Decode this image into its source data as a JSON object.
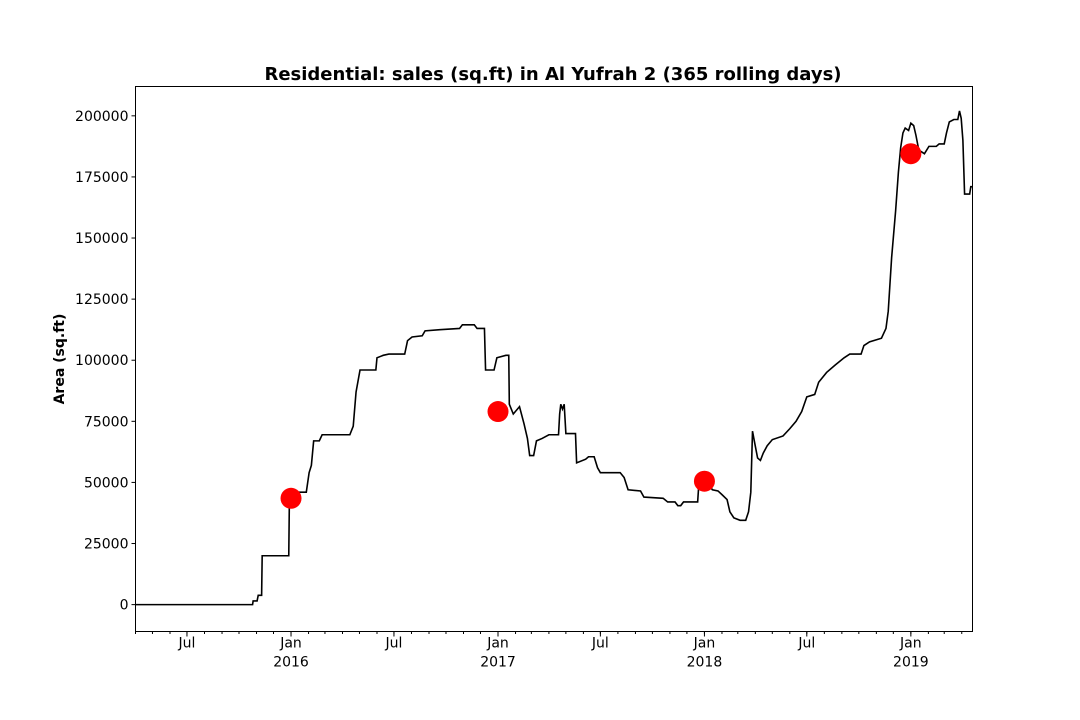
{
  "chart_data": {
    "type": "line",
    "title": "Residential: sales (sq.ft) in Al Yufrah 2 (365 rolling days)",
    "xlabel": "",
    "ylabel": "Area (sq.ft)",
    "xlim": [
      "2015-04-01",
      "2019-04-20"
    ],
    "ylim": [
      -11000,
      212000
    ],
    "grid": false,
    "y_ticks": [
      {
        "value": 0,
        "label": "0"
      },
      {
        "value": 25000,
        "label": "25000"
      },
      {
        "value": 50000,
        "label": "50000"
      },
      {
        "value": 75000,
        "label": "75000"
      },
      {
        "value": 100000,
        "label": "100000"
      },
      {
        "value": 125000,
        "label": "125000"
      },
      {
        "value": 150000,
        "label": "150000"
      },
      {
        "value": 175000,
        "label": "175000"
      },
      {
        "value": 200000,
        "label": "200000"
      }
    ],
    "x_major_ticks": [
      {
        "date": "2015-07-01",
        "label": "Jul",
        "sublabel": ""
      },
      {
        "date": "2016-01-01",
        "label": "Jan",
        "sublabel": "2016"
      },
      {
        "date": "2016-07-01",
        "label": "Jul",
        "sublabel": ""
      },
      {
        "date": "2017-01-01",
        "label": "Jan",
        "sublabel": "2017"
      },
      {
        "date": "2017-07-01",
        "label": "Jul",
        "sublabel": ""
      },
      {
        "date": "2018-01-01",
        "label": "Jan",
        "sublabel": "2018"
      },
      {
        "date": "2018-07-01",
        "label": "Jul",
        "sublabel": ""
      },
      {
        "date": "2019-01-01",
        "label": "Jan",
        "sublabel": "2019"
      }
    ],
    "series": [
      {
        "color": "#000000",
        "points": [
          [
            "2015-04-01",
            0
          ],
          [
            "2015-10-25",
            0
          ],
          [
            "2015-10-26",
            1500
          ],
          [
            "2015-11-02",
            1500
          ],
          [
            "2015-11-04",
            3800
          ],
          [
            "2015-11-10",
            3800
          ],
          [
            "2015-11-11",
            20000
          ],
          [
            "2015-12-28",
            20000
          ],
          [
            "2015-12-29",
            41000
          ],
          [
            "2016-01-10",
            43000
          ],
          [
            "2016-01-14",
            46000
          ],
          [
            "2016-01-28",
            46000
          ],
          [
            "2016-02-02",
            54000
          ],
          [
            "2016-02-06",
            57000
          ],
          [
            "2016-02-10",
            67000
          ],
          [
            "2016-02-20",
            67000
          ],
          [
            "2016-02-25",
            69500
          ],
          [
            "2016-04-14",
            69500
          ],
          [
            "2016-04-20",
            73000
          ],
          [
            "2016-04-25",
            87000
          ],
          [
            "2016-05-02",
            96000
          ],
          [
            "2016-05-30",
            96000
          ],
          [
            "2016-06-01",
            101000
          ],
          [
            "2016-06-12",
            102000
          ],
          [
            "2016-06-22",
            102500
          ],
          [
            "2016-07-20",
            102500
          ],
          [
            "2016-07-25",
            108000
          ],
          [
            "2016-08-02",
            109500
          ],
          [
            "2016-08-20",
            110000
          ],
          [
            "2016-08-25",
            112000
          ],
          [
            "2016-09-20",
            112500
          ],
          [
            "2016-10-25",
            113000
          ],
          [
            "2016-10-30",
            114500
          ],
          [
            "2016-11-20",
            114500
          ],
          [
            "2016-11-25",
            113000
          ],
          [
            "2016-12-08",
            113000
          ],
          [
            "2016-12-10",
            96000
          ],
          [
            "2016-12-25",
            96000
          ],
          [
            "2016-12-30",
            101000
          ],
          [
            "2017-01-15",
            102000
          ],
          [
            "2017-01-20",
            102000
          ],
          [
            "2017-01-21",
            82000
          ],
          [
            "2017-01-28",
            78000
          ],
          [
            "2017-02-08",
            81000
          ],
          [
            "2017-02-16",
            74000
          ],
          [
            "2017-02-22",
            68000
          ],
          [
            "2017-02-26",
            61000
          ],
          [
            "2017-03-05",
            61000
          ],
          [
            "2017-03-10",
            67000
          ],
          [
            "2017-03-20",
            68000
          ],
          [
            "2017-04-01",
            69500
          ],
          [
            "2017-04-18",
            69500
          ],
          [
            "2017-04-20",
            78000
          ],
          [
            "2017-04-22",
            82000
          ],
          [
            "2017-04-25",
            80000
          ],
          [
            "2017-04-28",
            82000
          ],
          [
            "2017-05-01",
            70000
          ],
          [
            "2017-05-18",
            70000
          ],
          [
            "2017-05-20",
            58000
          ],
          [
            "2017-06-05",
            59500
          ],
          [
            "2017-06-10",
            60500
          ],
          [
            "2017-06-20",
            60500
          ],
          [
            "2017-06-26",
            56000
          ],
          [
            "2017-07-01",
            54000
          ],
          [
            "2017-08-05",
            54000
          ],
          [
            "2017-08-12",
            52000
          ],
          [
            "2017-08-19",
            47000
          ],
          [
            "2017-09-10",
            46500
          ],
          [
            "2017-09-16",
            44000
          ],
          [
            "2017-10-20",
            43500
          ],
          [
            "2017-10-28",
            42000
          ],
          [
            "2017-11-10",
            42000
          ],
          [
            "2017-11-15",
            40500
          ],
          [
            "2017-11-20",
            40500
          ],
          [
            "2017-11-25",
            42000
          ],
          [
            "2017-12-20",
            42000
          ],
          [
            "2017-12-22",
            49000
          ],
          [
            "2017-12-28",
            48500
          ],
          [
            "2018-01-05",
            50500
          ],
          [
            "2018-01-15",
            47000
          ],
          [
            "2018-01-25",
            46500
          ],
          [
            "2018-02-01",
            45000
          ],
          [
            "2018-02-10",
            43000
          ],
          [
            "2018-02-15",
            38000
          ],
          [
            "2018-02-22",
            35500
          ],
          [
            "2018-03-05",
            34500
          ],
          [
            "2018-03-15",
            34500
          ],
          [
            "2018-03-20",
            38000
          ],
          [
            "2018-03-24",
            46000
          ],
          [
            "2018-03-27",
            71000
          ],
          [
            "2018-03-31",
            66000
          ],
          [
            "2018-04-05",
            60000
          ],
          [
            "2018-04-10",
            59000
          ],
          [
            "2018-04-15",
            62000
          ],
          [
            "2018-04-22",
            65000
          ],
          [
            "2018-05-01",
            67500
          ],
          [
            "2018-05-20",
            69000
          ],
          [
            "2018-06-01",
            72000
          ],
          [
            "2018-06-12",
            75000
          ],
          [
            "2018-06-22",
            79000
          ],
          [
            "2018-07-01",
            85000
          ],
          [
            "2018-07-15",
            86000
          ],
          [
            "2018-07-22",
            91000
          ],
          [
            "2018-08-05",
            95000
          ],
          [
            "2018-08-20",
            98000
          ],
          [
            "2018-09-05",
            101000
          ],
          [
            "2018-09-15",
            102500
          ],
          [
            "2018-10-05",
            102500
          ],
          [
            "2018-10-10",
            106000
          ],
          [
            "2018-10-20",
            107500
          ],
          [
            "2018-11-10",
            109000
          ],
          [
            "2018-11-18",
            113000
          ],
          [
            "2018-11-22",
            120000
          ],
          [
            "2018-11-28",
            142000
          ],
          [
            "2018-12-05",
            161000
          ],
          [
            "2018-12-10",
            177000
          ],
          [
            "2018-12-14",
            187000
          ],
          [
            "2018-12-18",
            193000
          ],
          [
            "2018-12-22",
            195000
          ],
          [
            "2018-12-28",
            194000
          ],
          [
            "2019-01-01",
            197000
          ],
          [
            "2019-01-06",
            196000
          ],
          [
            "2019-01-10",
            192000
          ],
          [
            "2019-01-15",
            186000
          ],
          [
            "2019-01-25",
            184500
          ],
          [
            "2019-02-02",
            187500
          ],
          [
            "2019-02-15",
            187500
          ],
          [
            "2019-02-20",
            188500
          ],
          [
            "2019-03-01",
            188500
          ],
          [
            "2019-03-05",
            193000
          ],
          [
            "2019-03-10",
            197500
          ],
          [
            "2019-03-18",
            198500
          ],
          [
            "2019-03-25",
            198500
          ],
          [
            "2019-03-28",
            202000
          ],
          [
            "2019-03-31",
            199000
          ],
          [
            "2019-04-03",
            190000
          ],
          [
            "2019-04-06",
            168000
          ],
          [
            "2019-04-15",
            168000
          ],
          [
            "2019-04-17",
            171000
          ],
          [
            "2019-04-20",
            171000
          ]
        ]
      }
    ],
    "markers": {
      "color": "#ff0000",
      "points": [
        {
          "date": "2016-01-01",
          "value": 43500
        },
        {
          "date": "2017-01-01",
          "value": 79000
        },
        {
          "date": "2018-01-01",
          "value": 50500
        },
        {
          "date": "2019-01-01",
          "value": 184500
        }
      ]
    }
  }
}
